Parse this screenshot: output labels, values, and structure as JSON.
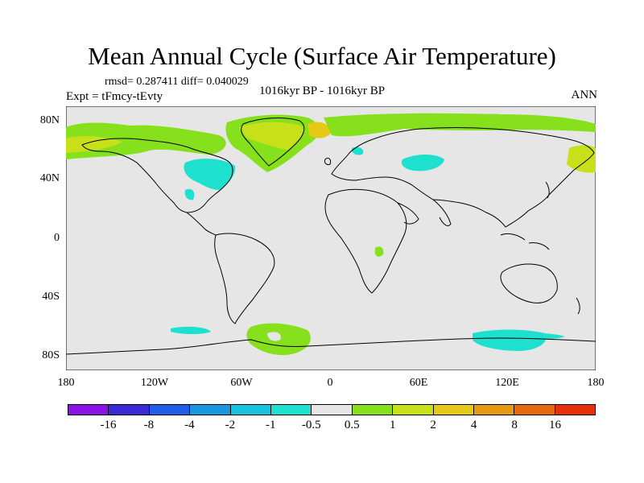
{
  "title": "Mean Annual Cycle (Surface Air Temperature)",
  "stats": "rmsd= 0.287411 diff= 0.040029",
  "experiment": "Expt = tFmcy-tEvty",
  "period": "1016kyr BP - 1016kyr BP",
  "season": "ANN",
  "lat_ticks": [
    "80N",
    "40N",
    "0",
    "40S",
    "80S"
  ],
  "lon_ticks": [
    "180",
    "120W",
    "60W",
    "0",
    "60E",
    "120E",
    "180"
  ],
  "colorbar": {
    "colors": [
      "#8a14e6",
      "#3a2ad6",
      "#1f5ee6",
      "#1996e0",
      "#18c3e0",
      "#1ee0cf",
      "#e6e6e6",
      "#86e01b",
      "#c8e019",
      "#e6c816",
      "#e69a12",
      "#e6680f",
      "#e6300c"
    ],
    "labels": [
      "-16",
      "-8",
      "-4",
      "-2",
      "-1",
      "-0.5",
      "0.5",
      "1",
      "2",
      "4",
      "8",
      "16"
    ]
  },
  "legend_colors": {
    "background": "#e6e6e6",
    "land_outline": "#000000"
  }
}
